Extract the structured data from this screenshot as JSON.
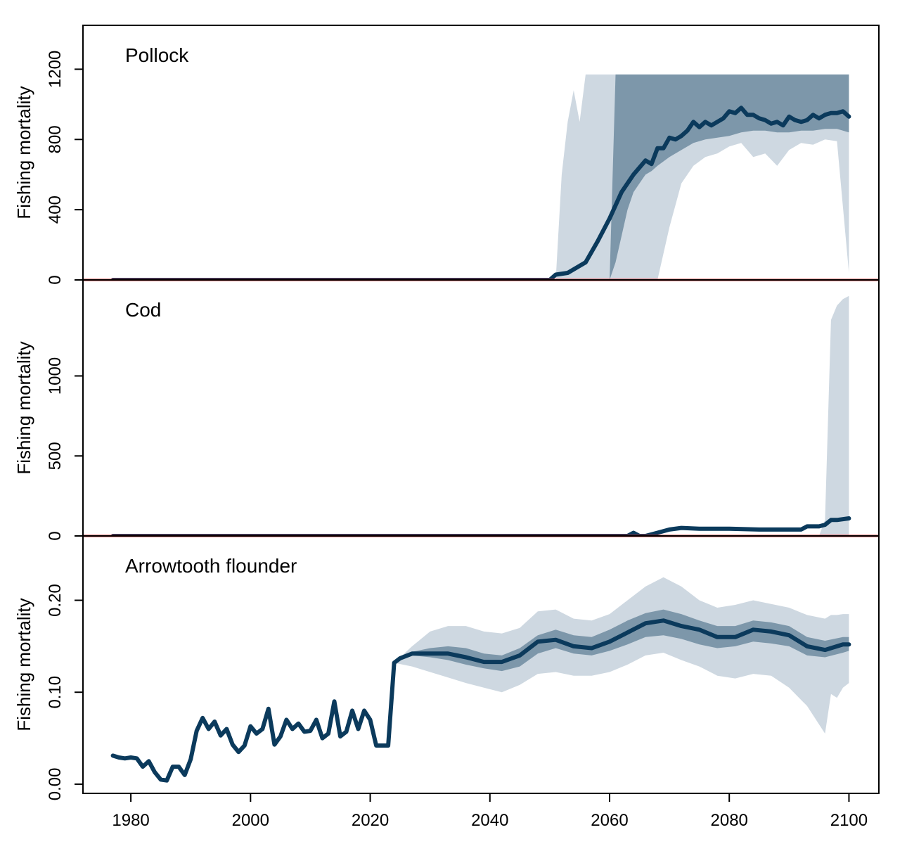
{
  "colors": {
    "median_line": "#0b3a5c",
    "inner_band": "#7d97aa",
    "outer_band": "#ced8e1",
    "reference_line": "#ee1111",
    "frame": "#000000"
  },
  "x_axis": {
    "ticks": [
      1980,
      2000,
      2020,
      2040,
      2060,
      2080,
      2100
    ],
    "tick_labels": [
      "1980",
      "2000",
      "2020",
      "2040",
      "2060",
      "2080",
      "2100"
    ],
    "xlim": [
      1972,
      2105
    ]
  },
  "chart_data": [
    {
      "type": "area",
      "title": "Pollock",
      "ylabel": "Fishing mortality",
      "ylim": [
        0,
        1450
      ],
      "yticks": [
        0,
        400,
        800,
        1200
      ],
      "ytick_labels": [
        "0",
        "400",
        "800",
        "1200"
      ],
      "reference_line_y": 0,
      "median": {
        "x": [
          1977,
          2050,
          2051,
          2053,
          2056,
          2058,
          2060,
          2062,
          2064,
          2066,
          2067,
          2068,
          2069,
          2070,
          2071,
          2072,
          2073,
          2074,
          2075,
          2076,
          2077,
          2078,
          2079,
          2080,
          2081,
          2082,
          2083,
          2084,
          2085,
          2086,
          2087,
          2088,
          2089,
          2090,
          2091,
          2092,
          2093,
          2094,
          2095,
          2096,
          2097,
          2098,
          2099,
          2100
        ],
        "y": [
          0,
          0,
          30,
          40,
          100,
          220,
          350,
          500,
          600,
          680,
          660,
          750,
          750,
          810,
          800,
          820,
          850,
          900,
          870,
          900,
          880,
          900,
          920,
          960,
          950,
          980,
          940,
          940,
          920,
          910,
          890,
          900,
          880,
          930,
          910,
          900,
          910,
          940,
          920,
          940,
          950,
          950,
          960,
          930
        ]
      },
      "inner_band": {
        "x": [
          2060,
          2061,
          2062,
          2063,
          2064,
          2065,
          2066,
          2067,
          2068,
          2070,
          2072,
          2074,
          2076,
          2078,
          2080,
          2082,
          2084,
          2086,
          2088,
          2090,
          2092,
          2094,
          2096,
          2098,
          2100
        ],
        "lower": [
          0,
          100,
          250,
          400,
          500,
          550,
          600,
          620,
          650,
          700,
          740,
          780,
          800,
          810,
          820,
          840,
          850,
          850,
          840,
          840,
          850,
          850,
          860,
          860,
          840
        ],
        "upper": [
          0,
          1170,
          1170,
          1170,
          1170,
          1170,
          1170,
          1170,
          1170,
          1170,
          1170,
          1170,
          1170,
          1170,
          1170,
          1170,
          1170,
          1170,
          1170,
          1170,
          1170,
          1170,
          1170,
          1170,
          1170
        ]
      },
      "outer_band": {
        "x": [
          2051,
          2052,
          2053,
          2054,
          2055,
          2056,
          2058,
          2060,
          2062,
          2064,
          2066,
          2068,
          2070,
          2072,
          2074,
          2076,
          2078,
          2080,
          2082,
          2084,
          2086,
          2088,
          2090,
          2092,
          2094,
          2096,
          2098,
          2100
        ],
        "lower": [
          0,
          0,
          0,
          0,
          0,
          0,
          0,
          0,
          0,
          0,
          0,
          0,
          300,
          550,
          650,
          700,
          720,
          760,
          780,
          700,
          720,
          650,
          740,
          780,
          770,
          800,
          790,
          40
        ],
        "upper": [
          0,
          600,
          900,
          1080,
          900,
          1170,
          1170,
          1170,
          1170,
          1170,
          1170,
          1170,
          1170,
          1170,
          1170,
          1170,
          1170,
          1170,
          1170,
          1170,
          1170,
          1170,
          1170,
          1170,
          1170,
          1170,
          1170,
          1170
        ]
      }
    },
    {
      "type": "area",
      "title": "Cod",
      "ylabel": "Fishing mortality",
      "ylim": [
        0,
        1600
      ],
      "yticks": [
        0,
        500,
        1000
      ],
      "ytick_labels": [
        "0",
        "500",
        "1000"
      ],
      "reference_line_y": 0,
      "median": {
        "x": [
          1977,
          2063,
          2064,
          2065,
          2066,
          2068,
          2070,
          2072,
          2075,
          2080,
          2085,
          2090,
          2092,
          2093,
          2094,
          2095,
          2096,
          2097,
          2098,
          2100
        ],
        "y": [
          0,
          0,
          20,
          0,
          0,
          20,
          40,
          50,
          45,
          45,
          40,
          40,
          40,
          60,
          60,
          60,
          70,
          100,
          100,
          110
        ]
      },
      "outer_band": {
        "x": [
          2095,
          2096,
          2097,
          2098,
          2099,
          2100
        ],
        "lower": [
          0,
          0,
          0,
          0,
          0,
          0
        ],
        "upper": [
          0,
          100,
          1350,
          1440,
          1480,
          1500
        ]
      }
    },
    {
      "type": "area",
      "title": "Arrowtooth flounder",
      "ylabel": "Fishing mortality",
      "ylim": [
        -0.01,
        0.27
      ],
      "yticks": [
        0.0,
        0.1,
        0.2
      ],
      "ytick_labels": [
        "0.00",
        "0.10",
        "0.20"
      ],
      "median": {
        "x": [
          1977,
          1978,
          1979,
          1980,
          1981,
          1982,
          1983,
          1984,
          1985,
          1986,
          1987,
          1988,
          1989,
          1990,
          1991,
          1992,
          1993,
          1994,
          1995,
          1996,
          1997,
          1998,
          1999,
          2000,
          2001,
          2002,
          2003,
          2004,
          2005,
          2006,
          2007,
          2008,
          2009,
          2010,
          2011,
          2012,
          2013,
          2014,
          2015,
          2016,
          2017,
          2018,
          2019,
          2020,
          2021,
          2022,
          2023,
          2024,
          2025,
          2027,
          2030,
          2033,
          2036,
          2039,
          2042,
          2045,
          2048,
          2051,
          2054,
          2057,
          2060,
          2063,
          2066,
          2069,
          2072,
          2075,
          2078,
          2081,
          2084,
          2087,
          2090,
          2093,
          2096,
          2099,
          2100
        ],
        "y": [
          0.031,
          0.029,
          0.028,
          0.029,
          0.028,
          0.019,
          0.025,
          0.013,
          0.005,
          0.004,
          0.019,
          0.019,
          0.01,
          0.027,
          0.058,
          0.072,
          0.06,
          0.068,
          0.053,
          0.06,
          0.043,
          0.035,
          0.042,
          0.063,
          0.055,
          0.06,
          0.082,
          0.043,
          0.052,
          0.07,
          0.06,
          0.066,
          0.057,
          0.058,
          0.07,
          0.05,
          0.055,
          0.09,
          0.052,
          0.057,
          0.08,
          0.06,
          0.08,
          0.07,
          0.042,
          0.042,
          0.042,
          0.132,
          0.137,
          0.142,
          0.142,
          0.142,
          0.138,
          0.133,
          0.133,
          0.14,
          0.155,
          0.157,
          0.15,
          0.148,
          0.155,
          0.165,
          0.175,
          0.178,
          0.172,
          0.168,
          0.16,
          0.16,
          0.168,
          0.166,
          0.162,
          0.15,
          0.146,
          0.152,
          0.152
        ]
      },
      "inner_band": {
        "x": [
          2024,
          2027,
          2030,
          2033,
          2036,
          2039,
          2042,
          2045,
          2048,
          2051,
          2054,
          2057,
          2060,
          2063,
          2066,
          2069,
          2072,
          2075,
          2078,
          2081,
          2084,
          2087,
          2090,
          2093,
          2096,
          2099,
          2100
        ],
        "lower": [
          0.132,
          0.14,
          0.138,
          0.135,
          0.13,
          0.126,
          0.123,
          0.128,
          0.142,
          0.148,
          0.142,
          0.14,
          0.145,
          0.152,
          0.16,
          0.162,
          0.158,
          0.152,
          0.148,
          0.15,
          0.155,
          0.153,
          0.15,
          0.14,
          0.138,
          0.143,
          0.145
        ],
        "upper": [
          0.132,
          0.144,
          0.148,
          0.15,
          0.148,
          0.142,
          0.14,
          0.148,
          0.162,
          0.168,
          0.162,
          0.16,
          0.168,
          0.178,
          0.186,
          0.19,
          0.185,
          0.178,
          0.172,
          0.172,
          0.178,
          0.176,
          0.172,
          0.16,
          0.156,
          0.16,
          0.16
        ]
      },
      "outer_band": {
        "x": [
          2024,
          2027,
          2030,
          2033,
          2036,
          2039,
          2042,
          2045,
          2048,
          2051,
          2054,
          2057,
          2060,
          2063,
          2066,
          2069,
          2072,
          2075,
          2078,
          2081,
          2084,
          2087,
          2090,
          2093,
          2096,
          2097,
          2098,
          2099,
          2100
        ],
        "lower": [
          0.132,
          0.128,
          0.122,
          0.116,
          0.11,
          0.105,
          0.1,
          0.108,
          0.12,
          0.122,
          0.118,
          0.118,
          0.122,
          0.13,
          0.14,
          0.143,
          0.135,
          0.128,
          0.118,
          0.115,
          0.12,
          0.118,
          0.105,
          0.085,
          0.055,
          0.098,
          0.094,
          0.105,
          0.11
        ],
        "upper": [
          0.132,
          0.15,
          0.166,
          0.172,
          0.172,
          0.166,
          0.164,
          0.17,
          0.188,
          0.19,
          0.18,
          0.178,
          0.185,
          0.2,
          0.215,
          0.225,
          0.215,
          0.2,
          0.192,
          0.195,
          0.2,
          0.196,
          0.192,
          0.184,
          0.18,
          0.184,
          0.184,
          0.185,
          0.185
        ]
      }
    }
  ]
}
